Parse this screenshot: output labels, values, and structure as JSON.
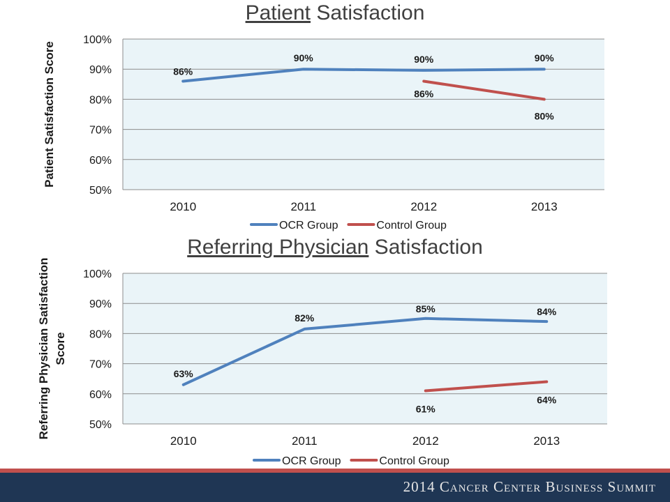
{
  "colors": {
    "ocr": "#4f81bd",
    "control": "#c0504d",
    "plot_bg": "#eaf4f8",
    "grid": "#8c8c8c",
    "axis_text": "#1a1a1a",
    "footer_red": "#c0504d",
    "footer_navy": "#1f3654"
  },
  "footer": {
    "text": "2014 Cancer Center Business Summit"
  },
  "chart_data": [
    {
      "type": "line",
      "title_underlined": "Patient",
      "title_rest": " Satisfaction",
      "ylabel": "Patient Satisfaction Score",
      "categories": [
        "2010",
        "2011",
        "2012",
        "2013"
      ],
      "y_ticks": [
        "100%",
        "90%",
        "80%",
        "70%",
        "60%",
        "50%"
      ],
      "ylim": [
        50,
        100
      ],
      "grid": true,
      "legend": "bottom",
      "series": [
        {
          "name": "OCR Group",
          "color_key": "ocr",
          "values": [
            86,
            90,
            89.6,
            90
          ],
          "labels": [
            "86%",
            "90%",
            "90%",
            "90%"
          ]
        },
        {
          "name": "Control Group",
          "color_key": "control",
          "values": [
            null,
            null,
            86,
            80
          ],
          "labels": [
            null,
            null,
            "86%",
            "80%"
          ]
        }
      ]
    },
    {
      "type": "line",
      "title_underlined": "Referring Physician",
      "title_rest": " Satisfaction",
      "ylabel_lines": [
        "Referring Physician Satisfaction",
        "Score"
      ],
      "categories": [
        "2010",
        "2011",
        "2012",
        "2013"
      ],
      "y_ticks": [
        "100%",
        "90%",
        "80%",
        "70%",
        "60%",
        "50%"
      ],
      "ylim": [
        50,
        100
      ],
      "grid": true,
      "legend": "bottom",
      "series": [
        {
          "name": "OCR Group",
          "color_key": "ocr",
          "values": [
            63,
            81.5,
            85,
            84
          ],
          "labels": [
            "63%",
            "82%",
            "85%",
            "84%"
          ]
        },
        {
          "name": "Control Group",
          "color_key": "control",
          "values": [
            null,
            null,
            61,
            64
          ],
          "labels": [
            null,
            null,
            "61%",
            "64%"
          ]
        }
      ]
    }
  ]
}
